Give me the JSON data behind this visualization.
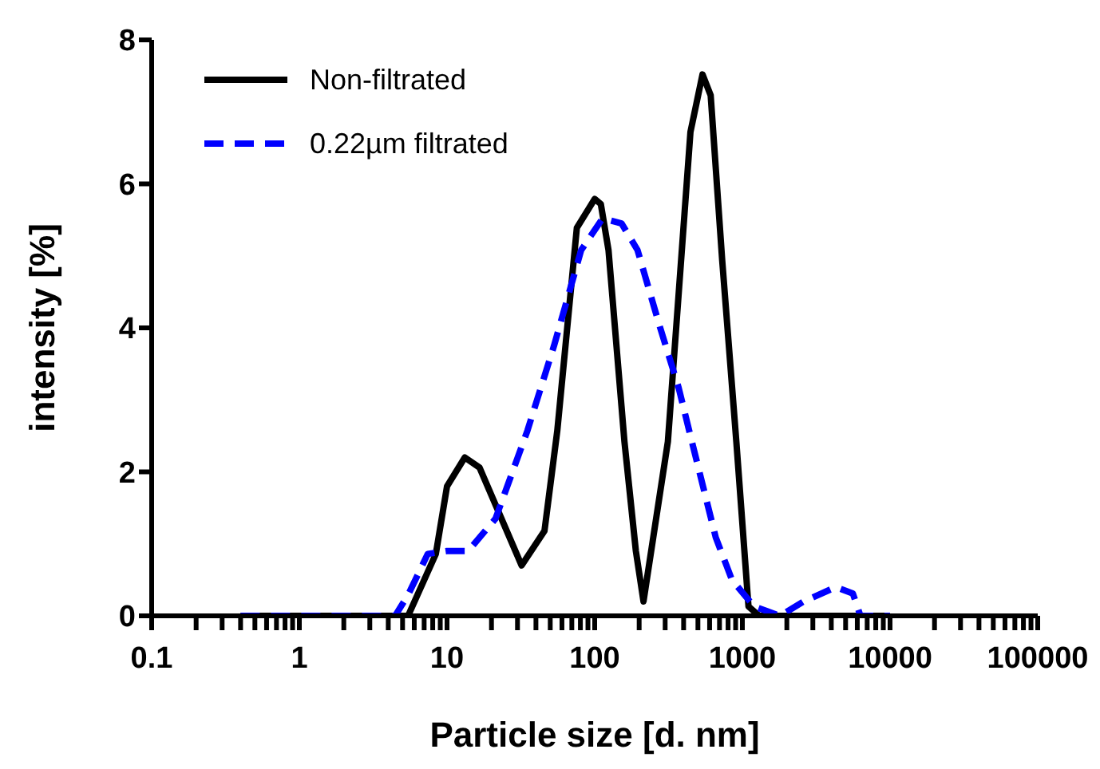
{
  "chart_data": {
    "type": "line",
    "xlabel": "Particle size [d. nm]",
    "ylabel": "intensity [%]",
    "log": "x",
    "xlim": [
      0.1,
      100000
    ],
    "ylim": [
      0,
      8
    ],
    "yticks": [
      0,
      2,
      4,
      6,
      8
    ],
    "xticks": [
      0.1,
      {
        "value": 0.2,
        "label": null
      },
      {
        "value": 0.3,
        "label": null
      },
      {
        "value": 0.4,
        "label": null
      },
      {
        "value": 0.5,
        "label": null
      },
      {
        "value": 0.6,
        "label": null
      },
      {
        "value": 0.7,
        "label": null
      },
      {
        "value": 0.8,
        "label": null
      },
      {
        "value": 0.9,
        "label": null
      },
      1,
      {
        "value": 2,
        "label": null
      },
      {
        "value": 3,
        "label": null
      },
      {
        "value": 4,
        "label": null
      },
      {
        "value": 5,
        "label": null
      },
      {
        "value": 6,
        "label": null
      },
      {
        "value": 7,
        "label": null
      },
      {
        "value": 8,
        "label": null
      },
      {
        "value": 9,
        "label": null
      },
      10,
      {
        "value": 20,
        "label": null
      },
      {
        "value": 30,
        "label": null
      },
      {
        "value": 40,
        "label": null
      },
      {
        "value": 50,
        "label": null
      },
      {
        "value": 60,
        "label": null
      },
      {
        "value": 70,
        "label": null
      },
      {
        "value": 80,
        "label": null
      },
      {
        "value": 90,
        "label": null
      },
      100,
      {
        "value": 200,
        "label": null
      },
      {
        "value": 300,
        "label": null
      },
      {
        "value": 400,
        "label": null
      },
      {
        "value": 500,
        "label": null
      },
      {
        "value": 600,
        "label": null
      },
      {
        "value": 700,
        "label": null
      },
      {
        "value": 800,
        "label": null
      },
      {
        "value": 900,
        "label": null
      },
      1000,
      {
        "value": 2000,
        "label": null
      },
      {
        "value": 3000,
        "label": null
      },
      {
        "value": 4000,
        "label": null
      },
      {
        "value": 5000,
        "label": null
      },
      {
        "value": 6000,
        "label": null
      },
      {
        "value": 7000,
        "label": null
      },
      {
        "value": 8000,
        "label": null
      },
      {
        "value": 9000,
        "label": null
      },
      10000,
      {
        "value": 20000,
        "label": null
      },
      {
        "value": 30000,
        "label": null
      },
      {
        "value": 40000,
        "label": null
      },
      {
        "value": 50000,
        "label": null
      },
      {
        "value": 60000,
        "label": null
      },
      {
        "value": 70000,
        "label": null
      },
      {
        "value": 80000,
        "label": null
      },
      {
        "value": 90000,
        "label": null
      },
      100000
    ],
    "grid": false,
    "legend": "top left",
    "marker": "none",
    "series": [
      {
        "name": "Non-filtrated",
        "color": "#000000",
        "line_style": "solid",
        "x": [
          0.4,
          5.45,
          8.4,
          10,
          13.2,
          16.6,
          32,
          45.7,
          55.8,
          75.7,
          100,
          110,
          124,
          159,
          190,
          214,
          313,
          445,
          537,
          610,
          730,
          910,
          1100,
          1300,
          10000
        ],
        "values": [
          0,
          0,
          0.86,
          1.8,
          2.2,
          2.06,
          0.7,
          1.18,
          2.57,
          5.39,
          5.79,
          5.72,
          5.08,
          2.42,
          0.9,
          0.2,
          2.42,
          6.72,
          7.52,
          7.23,
          4.94,
          2.42,
          0.13,
          0,
          0
        ]
      },
      {
        "name": "0.22µm filtrated",
        "color": "#0000ff",
        "line_style": "dashed",
        "x": [
          0.4,
          4.45,
          5.45,
          7.4,
          10,
          13.9,
          21.3,
          35,
          53,
          81,
          113,
          152,
          195,
          272,
          370,
          455,
          660,
          850,
          1200,
          1800,
          2600,
          4300,
          5600,
          6300,
          10000
        ],
        "values": [
          0,
          0,
          0.29,
          0.86,
          0.9,
          0.9,
          1.35,
          2.57,
          3.75,
          5.08,
          5.52,
          5.45,
          5.08,
          4.06,
          3.17,
          2.42,
          1.09,
          0.5,
          0.13,
          0,
          0.2,
          0.4,
          0.31,
          0,
          0
        ]
      }
    ]
  }
}
